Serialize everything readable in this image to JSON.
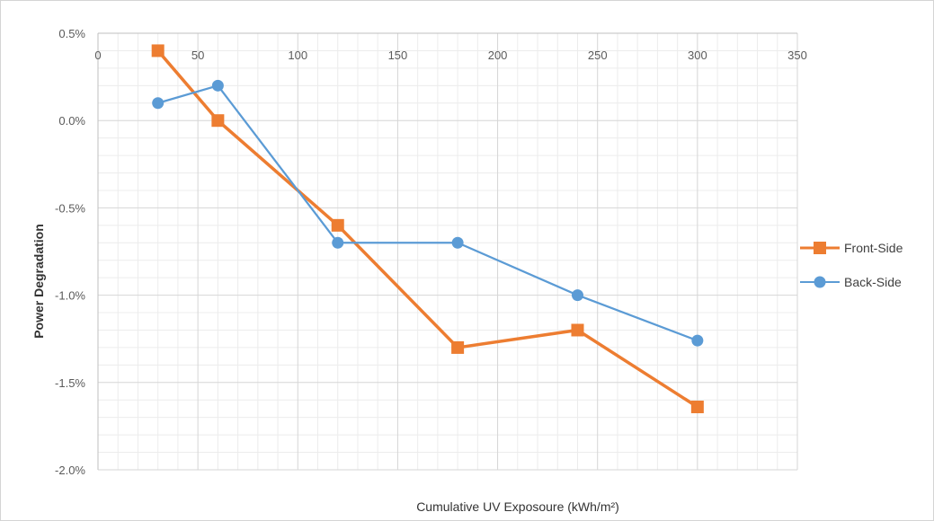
{
  "chart_data": {
    "type": "line",
    "title": "",
    "xlabel": "Cumulative UV Exposoure (kWh/m²)",
    "ylabel": "Power Degradation",
    "xlim": [
      0,
      350
    ],
    "ylim": [
      -2.0,
      0.5
    ],
    "x_ticks": [
      0,
      50,
      100,
      150,
      200,
      250,
      300,
      350
    ],
    "x_tick_labels": [
      "0",
      "50",
      "100",
      "150",
      "200",
      "250",
      "300",
      "350"
    ],
    "y_ticks": [
      0.5,
      0.0,
      -0.5,
      -1.0,
      -1.5,
      -2.0
    ],
    "y_tick_labels": [
      "0.5%",
      "0.0%",
      "-0.5%",
      "-1.0%",
      "-1.5%",
      "-2.0%"
    ],
    "x_axis_position": "top",
    "grid": true,
    "legend_position": "right",
    "series": [
      {
        "name": "Front-Side",
        "color": "#ED7D31",
        "marker": "square",
        "x": [
          30,
          60,
          120,
          180,
          240,
          300
        ],
        "y": [
          0.4,
          0.0,
          -0.6,
          -1.3,
          -1.2,
          -1.64
        ]
      },
      {
        "name": "Back-Side",
        "color": "#5B9BD5",
        "marker": "circle",
        "x": [
          30,
          60,
          120,
          180,
          240,
          300
        ],
        "y": [
          0.1,
          0.2,
          -0.7,
          -0.7,
          -1.0,
          -1.26
        ]
      }
    ]
  }
}
